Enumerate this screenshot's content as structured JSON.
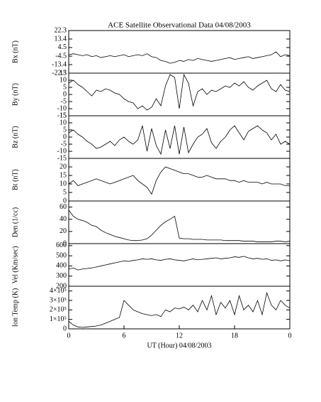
{
  "chart_data": [
    {
      "type": "line",
      "title": "ACE Satellite Observational Data   04/08/2003",
      "ylabel": "Bx (nT)",
      "color": "#000000",
      "x": [
        0,
        0.5,
        1,
        1.5,
        2,
        2.5,
        3,
        3.5,
        4,
        4.5,
        5,
        5.5,
        6,
        6.5,
        7,
        7.5,
        8,
        8.5,
        9,
        9.5,
        10,
        10.5,
        11,
        11.5,
        12,
        12.5,
        13,
        13.5,
        14,
        14.5,
        15,
        15.5,
        16,
        16.5,
        17,
        17.5,
        18,
        18.5,
        19,
        19.5,
        20,
        20.5,
        21,
        21.5,
        22,
        22.5,
        23,
        23.5,
        24
      ],
      "values": [
        -3,
        -2,
        -3,
        -4,
        -3,
        -5,
        -4,
        -6,
        -5,
        -4,
        -5,
        -4,
        -3,
        -5,
        -4,
        -3,
        -4,
        -2,
        -5,
        -6,
        -9,
        -10,
        -12,
        -11,
        -9,
        -10,
        -8,
        -9,
        -7,
        -8,
        -9,
        -10,
        -9,
        -8,
        -7,
        -6,
        -8,
        -7,
        -6,
        -5,
        -7,
        -6,
        -5,
        -4,
        -3,
        0,
        -5,
        -3,
        -4
      ],
      "xlim": [
        0,
        24
      ],
      "ylim": [
        -22.3,
        22.3
      ],
      "yticks": [
        -22.3,
        -13.4,
        -4.5,
        4.5,
        13.4,
        22.3
      ]
    },
    {
      "type": "line",
      "ylabel": "By (nT)",
      "color": "#000000",
      "x": [
        0,
        0.5,
        1,
        1.5,
        2,
        2.5,
        3,
        3.5,
        4,
        4.5,
        5,
        5.5,
        6,
        6.5,
        7,
        7.5,
        8,
        8.5,
        9,
        9.5,
        10,
        10.5,
        11,
        11.5,
        12,
        12.5,
        13,
        13.5,
        14,
        14.5,
        15,
        15.5,
        16,
        16.5,
        17,
        17.5,
        18,
        18.5,
        19,
        19.5,
        20,
        20.5,
        21,
        21.5,
        22,
        22.5,
        23,
        23.5,
        24
      ],
      "values": [
        8,
        10,
        7,
        5,
        2,
        -1,
        3,
        2,
        4,
        3,
        1,
        0,
        -3,
        -5,
        -6,
        -10,
        -8,
        -11,
        -9,
        -3,
        -8,
        6,
        14,
        12,
        -10,
        14,
        8,
        -8,
        2,
        4,
        0,
        3,
        2,
        4,
        6,
        5,
        8,
        6,
        9,
        5,
        3,
        6,
        8,
        10,
        4,
        2,
        7,
        3,
        2
      ],
      "xlim": [
        0,
        24
      ],
      "ylim": [
        -15,
        15
      ],
      "yticks": [
        -15,
        -10,
        -5,
        0,
        5,
        10,
        15
      ]
    },
    {
      "type": "line",
      "ylabel": "Bz (nT)",
      "color": "#000000",
      "x": [
        0,
        0.5,
        1,
        1.5,
        2,
        2.5,
        3,
        3.5,
        4,
        4.5,
        5,
        5.5,
        6,
        6.5,
        7,
        7.5,
        8,
        8.5,
        9,
        9.5,
        10,
        10.5,
        11,
        11.5,
        12,
        12.5,
        13,
        13.5,
        14,
        14.5,
        15,
        15.5,
        16,
        16.5,
        17,
        17.5,
        18,
        18.5,
        19,
        19.5,
        20,
        20.5,
        21,
        21.5,
        22,
        22.5,
        23,
        23.5,
        24
      ],
      "values": [
        3,
        5,
        2,
        0,
        -3,
        -5,
        -8,
        -7,
        -5,
        -3,
        -6,
        -2,
        0,
        -3,
        -5,
        -2,
        8,
        -10,
        6,
        -6,
        -12,
        5,
        -8,
        8,
        -12,
        7,
        -11,
        -5,
        0,
        2,
        6,
        -4,
        -8,
        -3,
        0,
        5,
        8,
        3,
        -2,
        4,
        6,
        8,
        5,
        3,
        -2,
        2,
        -5,
        -3,
        -5
      ],
      "xlim": [
        0,
        24
      ],
      "ylim": [
        -15,
        15
      ],
      "yticks": [
        -15,
        -10,
        -5,
        0,
        5,
        10,
        15
      ]
    },
    {
      "type": "line",
      "ylabel": "Bt (nT)",
      "color": "#000000",
      "x": [
        0,
        0.5,
        1,
        1.5,
        2,
        2.5,
        3,
        3.5,
        4,
        4.5,
        5,
        5.5,
        6,
        6.5,
        7,
        7.5,
        8,
        8.5,
        9,
        9.5,
        10,
        10.5,
        11,
        11.5,
        12,
        12.5,
        13,
        13.5,
        14,
        14.5,
        15,
        15.5,
        16,
        16.5,
        17,
        17.5,
        18,
        18.5,
        19,
        19.5,
        20,
        20.5,
        21,
        21.5,
        22,
        22.5,
        23,
        23.5,
        24
      ],
      "values": [
        10,
        12,
        9,
        10,
        11,
        12,
        13,
        12,
        11,
        10,
        11,
        12,
        13,
        14,
        15,
        12,
        10,
        8,
        4,
        12,
        17,
        20,
        19,
        18,
        17,
        16,
        16,
        15,
        14,
        14,
        15,
        14,
        13,
        13,
        13,
        12,
        12,
        11,
        12,
        11,
        11,
        11,
        10,
        11,
        10,
        10,
        10,
        9,
        9
      ],
      "xlim": [
        0,
        24
      ],
      "ylim": [
        0,
        25
      ],
      "yticks": [
        0,
        5,
        10,
        15,
        20
      ]
    },
    {
      "type": "line",
      "ylabel": "Den (1/cc)",
      "color": "#000000",
      "x": [
        0,
        0.5,
        1,
        1.5,
        2,
        2.5,
        3,
        3.5,
        4,
        4.5,
        5,
        5.5,
        6,
        6.5,
        7,
        7.5,
        8,
        8.5,
        9,
        9.5,
        10,
        10.5,
        11,
        11.5,
        12,
        12.5,
        13,
        13.5,
        14,
        14.5,
        15,
        15.5,
        16,
        16.5,
        17,
        17.5,
        18,
        18.5,
        19,
        19.5,
        20,
        20.5,
        21,
        21.5,
        22,
        22.5,
        23,
        23.5,
        24
      ],
      "values": [
        55,
        45,
        40,
        38,
        35,
        30,
        28,
        22,
        18,
        15,
        12,
        10,
        8,
        6,
        5,
        5,
        6,
        8,
        14,
        22,
        30,
        36,
        40,
        45,
        9,
        8,
        8,
        7,
        7,
        7,
        6,
        6,
        6,
        6,
        5,
        5,
        5,
        5,
        4,
        4,
        4,
        3,
        3,
        3,
        3,
        4,
        4,
        3,
        4
      ],
      "xlim": [
        0,
        24
      ],
      "ylim": [
        0,
        70
      ],
      "yticks": [
        0,
        20,
        40,
        60
      ]
    },
    {
      "type": "line",
      "ylabel": "Vel (Km/sec)",
      "color": "#000000",
      "x": [
        0,
        0.5,
        1,
        1.5,
        2,
        2.5,
        3,
        3.5,
        4,
        4.5,
        5,
        5.5,
        6,
        6.5,
        7,
        7.5,
        8,
        8.5,
        9,
        9.5,
        10,
        10.5,
        11,
        11.5,
        12,
        12.5,
        13,
        13.5,
        14,
        14.5,
        15,
        15.5,
        16,
        16.5,
        17,
        17.5,
        18,
        18.5,
        19,
        19.5,
        20,
        20.5,
        21,
        21.5,
        22,
        22.5,
        23,
        23.5,
        24
      ],
      "values": [
        370,
        380,
        360,
        370,
        375,
        380,
        390,
        400,
        410,
        420,
        430,
        440,
        450,
        445,
        455,
        460,
        470,
        465,
        470,
        460,
        455,
        465,
        470,
        460,
        455,
        450,
        460,
        470,
        460,
        465,
        470,
        475,
        480,
        470,
        475,
        480,
        490,
        485,
        495,
        480,
        470,
        475,
        465,
        470,
        455,
        460,
        450,
        460,
        450
      ],
      "xlim": [
        0,
        24
      ],
      "ylim": [
        200,
        620
      ],
      "yticks": [
        200,
        300,
        400,
        500,
        600
      ]
    },
    {
      "type": "line",
      "ylabel": "Ion Temp (K)",
      "xlabel": "UT (Hour)   04/08/2003",
      "color": "#000000",
      "x": [
        0,
        0.5,
        1,
        1.5,
        2,
        2.5,
        3,
        3.5,
        4,
        4.5,
        5,
        5.5,
        6,
        6.5,
        7,
        7.5,
        8,
        8.5,
        9,
        9.5,
        10,
        10.5,
        11,
        11.5,
        12,
        12.5,
        13,
        13.5,
        14,
        14.5,
        15,
        15.5,
        16,
        16.5,
        17,
        17.5,
        18,
        18.5,
        19,
        19.5,
        20,
        20.5,
        21,
        21.5,
        22,
        22.5,
        23,
        23.5,
        24
      ],
      "values": [
        80000,
        40000,
        20000,
        15000,
        20000,
        25000,
        30000,
        40000,
        60000,
        80000,
        100000,
        120000,
        300000,
        250000,
        200000,
        180000,
        160000,
        150000,
        140000,
        150000,
        130000,
        200000,
        180000,
        220000,
        210000,
        230000,
        200000,
        250000,
        180000,
        300000,
        200000,
        350000,
        150000,
        280000,
        220000,
        300000,
        150000,
        350000,
        200000,
        250000,
        180000,
        300000,
        150000,
        380000,
        250000,
        200000,
        300000,
        250000,
        220000
      ],
      "xlim": [
        0,
        24
      ],
      "ylim": [
        0,
        450000
      ],
      "yticks": [
        0,
        {
          "value": 100000,
          "label": "1×10⁵"
        },
        {
          "value": 200000,
          "label": "2×10⁵"
        },
        {
          "value": 300000,
          "label": "3×10⁵"
        },
        {
          "value": 400000,
          "label": "4×10⁵"
        }
      ],
      "xticks": [
        0,
        6,
        12,
        18,
        {
          "value": 24,
          "label": "0"
        }
      ]
    }
  ]
}
